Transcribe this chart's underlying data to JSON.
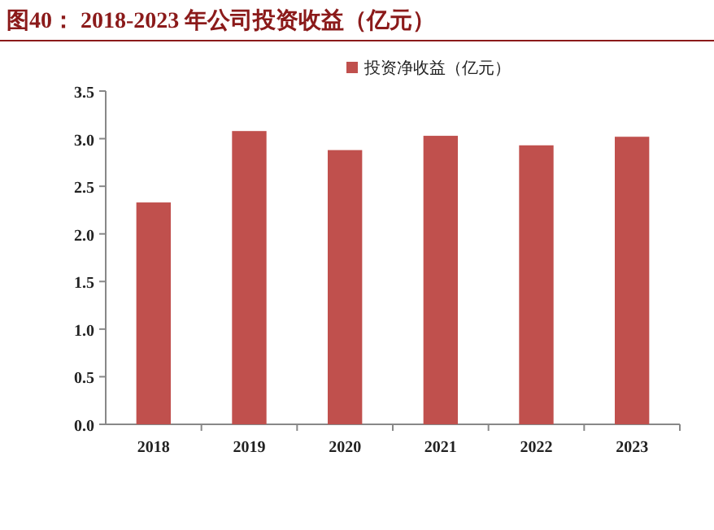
{
  "chart_data": {
    "type": "bar",
    "title": "图40： 2018-2023 年公司投资收益（亿元）",
    "categories": [
      "2018",
      "2019",
      "2020",
      "2021",
      "2022",
      "2023"
    ],
    "series": [
      {
        "name": "投资净收益（亿元）",
        "color": "#c0504d",
        "values": [
          2.33,
          3.08,
          2.88,
          3.03,
          2.93,
          3.02
        ]
      }
    ],
    "ylim": [
      0,
      3.5
    ],
    "yticks": [
      {
        "value": 0,
        "label": "0.0"
      },
      {
        "value": 0.5,
        "label": "0.5"
      },
      {
        "value": 1,
        "label": "1.0"
      },
      {
        "value": 1.5,
        "label": "1.5"
      },
      {
        "value": 2,
        "label": "2.0"
      },
      {
        "value": 2.5,
        "label": "2.5"
      },
      {
        "value": 3,
        "label": "3.0"
      },
      {
        "value": 3.5,
        "label": "3.5"
      }
    ],
    "grid": false,
    "legend": "top right"
  }
}
